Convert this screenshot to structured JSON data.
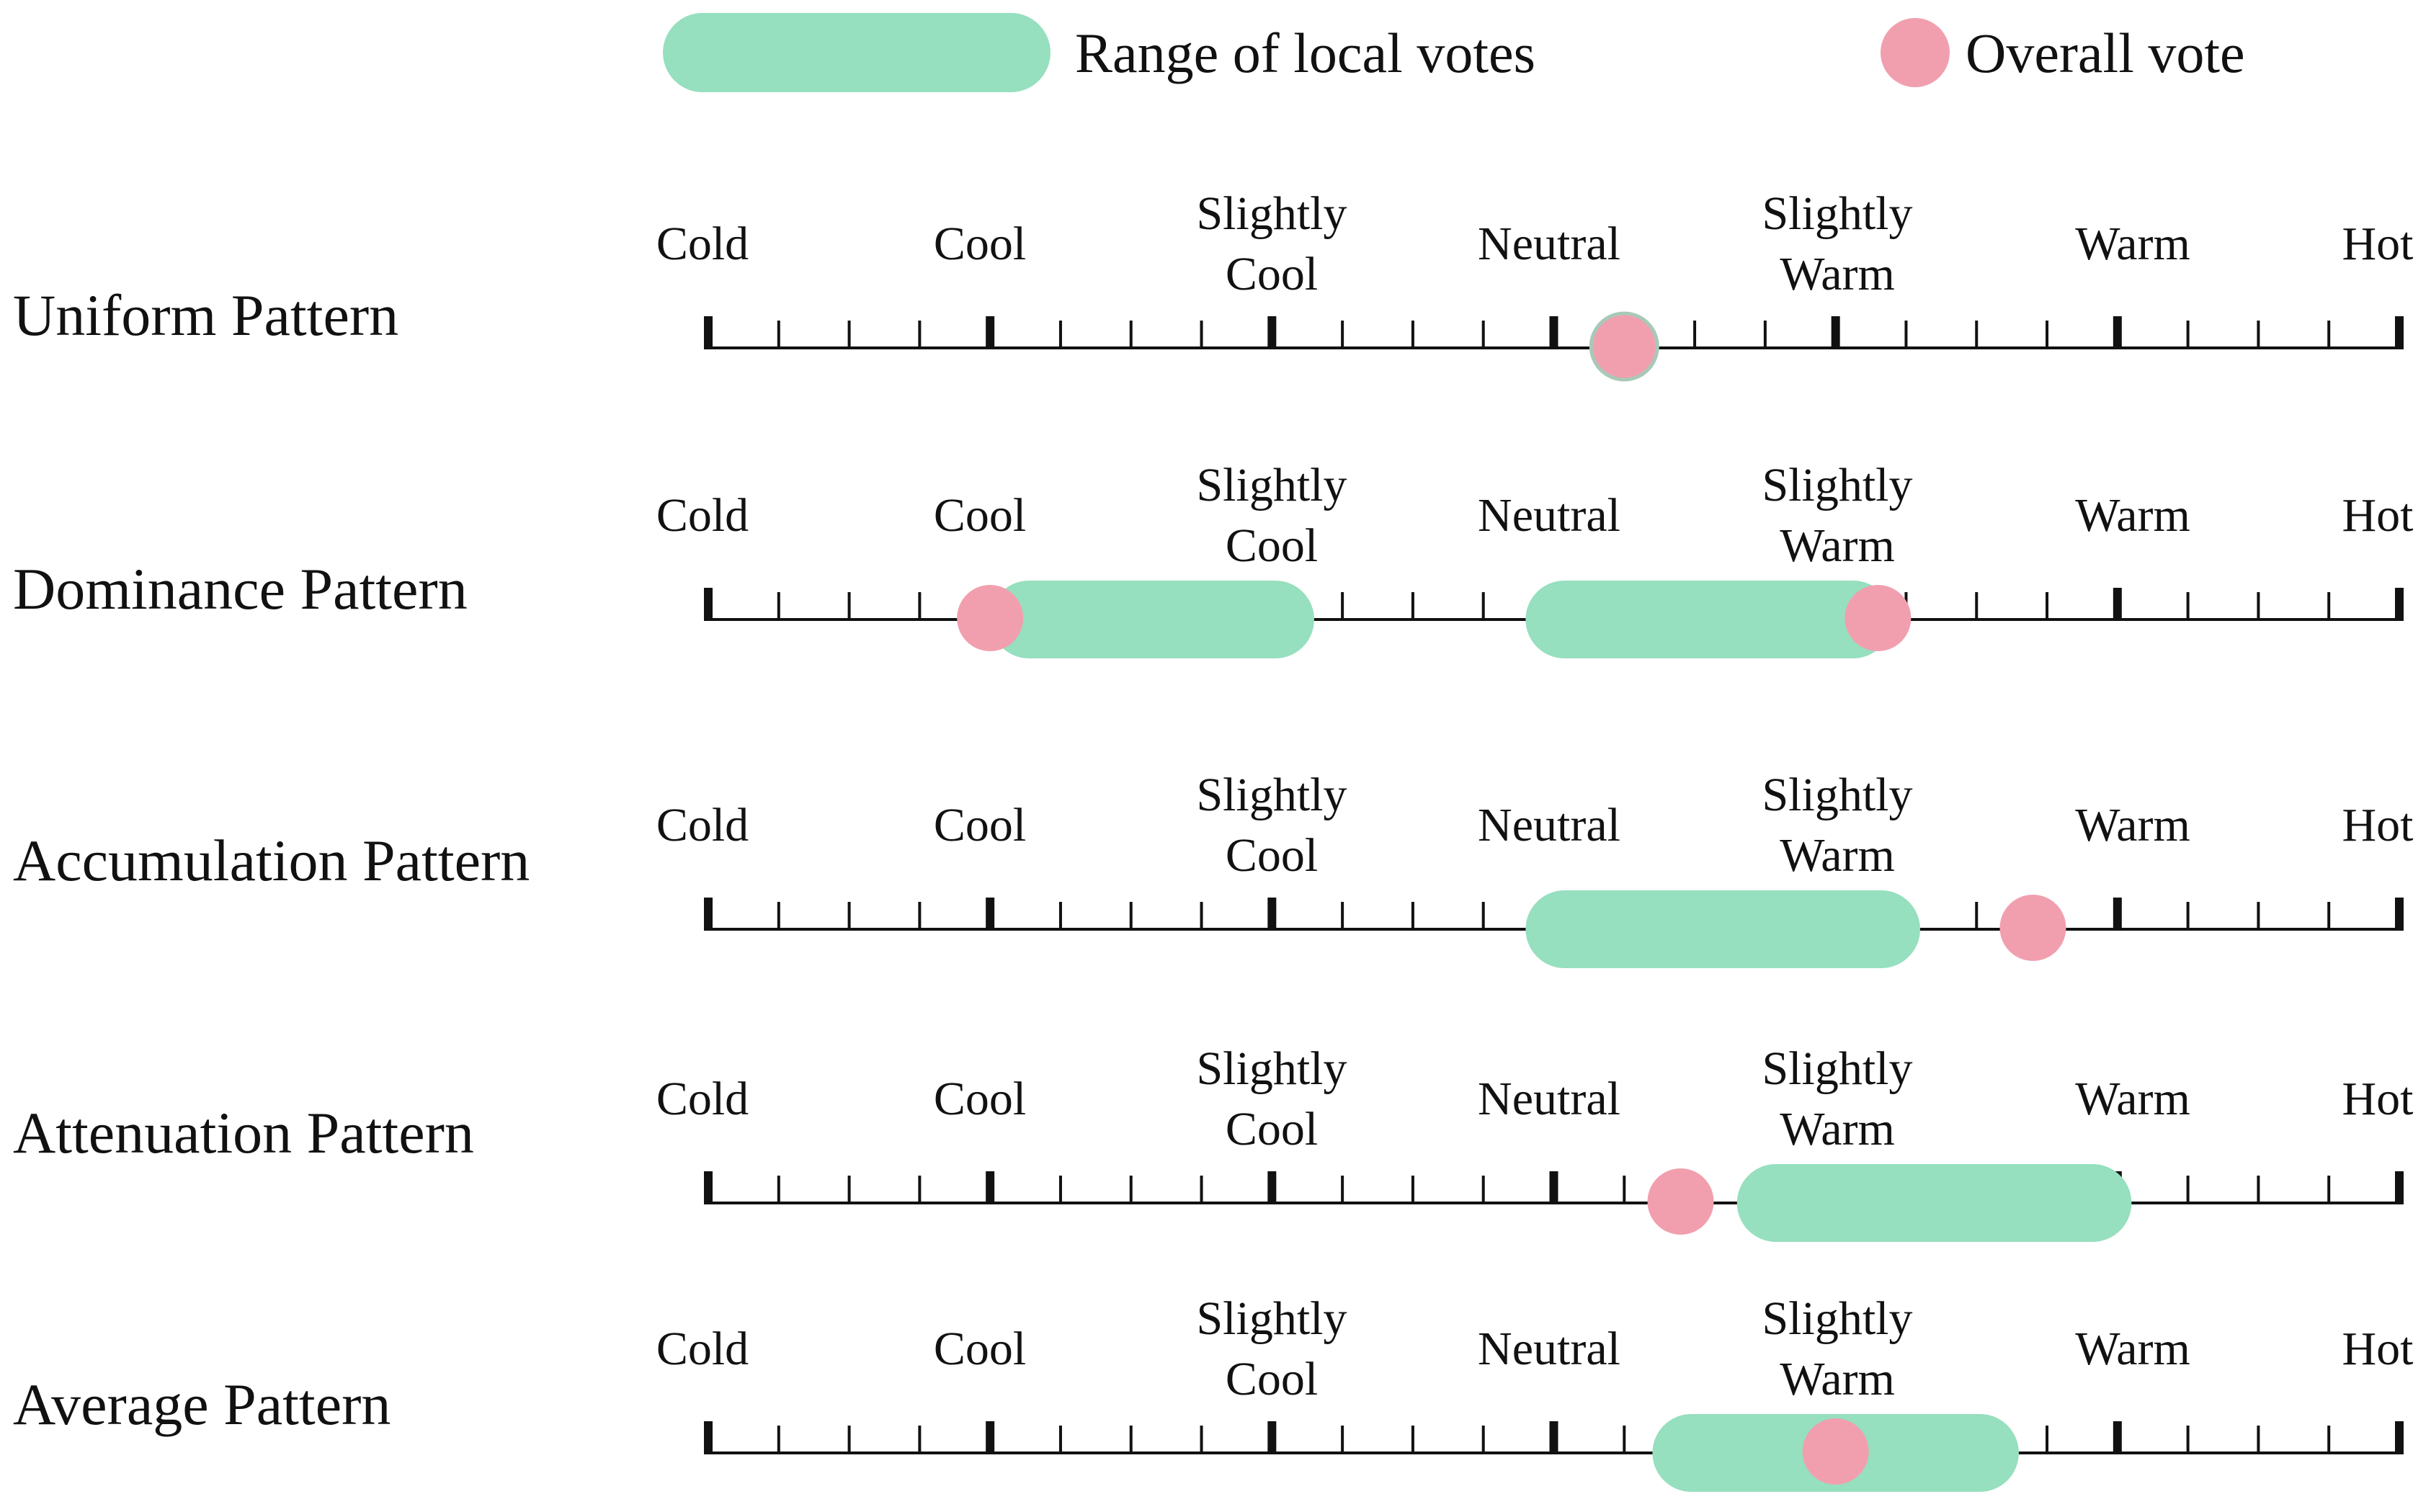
{
  "colors": {
    "range": "#96dfbf",
    "vote": "#f19fae",
    "vote_edge": "#e59aa8",
    "axis": "#111111",
    "text": "#111111"
  },
  "legend": {
    "range_label": "Range of local votes",
    "vote_label": "Overall vote"
  },
  "scale": {
    "labels": [
      [
        "Cold"
      ],
      [
        "Cool"
      ],
      [
        "Slightly",
        "Cool"
      ],
      [
        "Neutral"
      ],
      [
        "Slightly",
        "Warm"
      ],
      [
        "Warm"
      ],
      [
        "Hot"
      ]
    ],
    "min": -3,
    "max": 3,
    "minor_step": 0.25
  },
  "patterns": [
    {
      "name": "Uniform Pattern",
      "ranges": [],
      "votes": [
        0.25
      ]
    },
    {
      "name": "Dominance Pattern",
      "ranges": [
        [
          -2,
          -0.85
        ],
        [
          -0.1,
          1.2
        ]
      ],
      "votes": [
        -2,
        1.15
      ]
    },
    {
      "name": "Accumulation Pattern",
      "ranges": [
        [
          -0.1,
          1.3
        ]
      ],
      "votes": [
        1.7
      ]
    },
    {
      "name": "Attenuation Pattern",
      "ranges": [
        [
          0.65,
          2.05
        ]
      ],
      "votes": [
        0.45
      ]
    },
    {
      "name": "Average Pattern",
      "ranges": [
        [
          0.35,
          1.65
        ]
      ],
      "votes": [
        1.0
      ]
    }
  ]
}
